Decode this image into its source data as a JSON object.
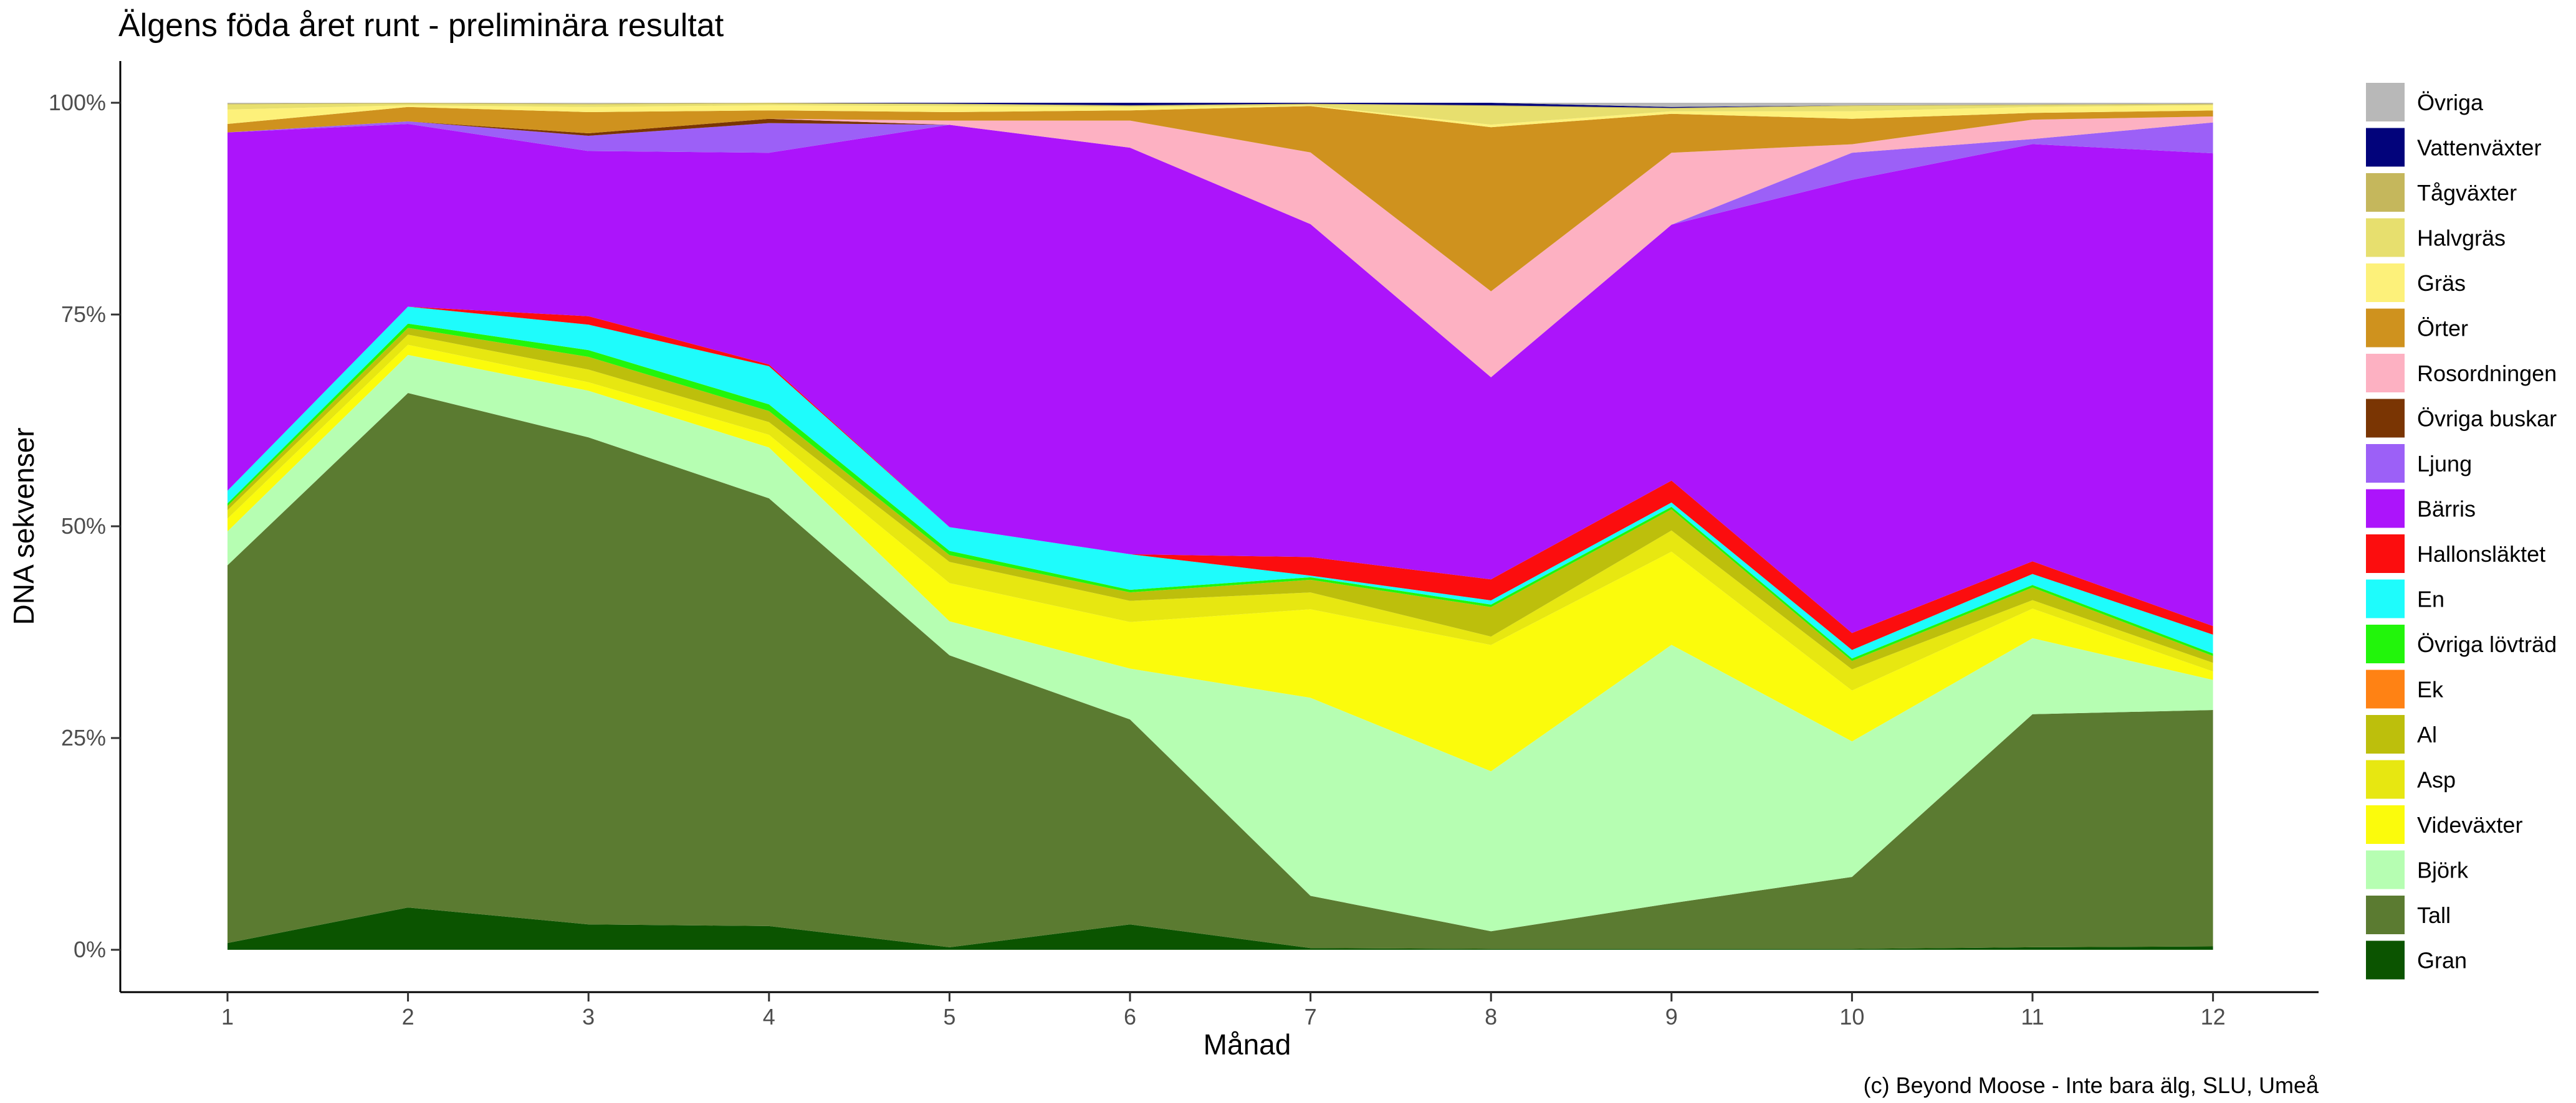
{
  "chart_data": {
    "type": "area",
    "stacked": true,
    "normalized": true,
    "title": "Älgens föda året runt - preliminära resultat",
    "xlabel": "Månad",
    "ylabel": "DNA sekvenser",
    "caption": "(c) Beyond Moose - Inte bara älg, SLU, Umeå",
    "x": [
      1,
      2,
      3,
      4,
      5,
      6,
      7,
      8,
      9,
      10,
      11,
      12
    ],
    "x_tick_labels": [
      "1",
      "2",
      "3",
      "4",
      "5",
      "6",
      "7",
      "8",
      "9",
      "10",
      "11",
      "12"
    ],
    "y_tick_labels": [
      "0%",
      "25%",
      "50%",
      "75%",
      "100%"
    ],
    "y_ticks": [
      0,
      25,
      50,
      75,
      100
    ],
    "ylim": [
      0,
      100
    ],
    "grid": false,
    "legend_position": "right",
    "series": [
      {
        "name": "Gran",
        "color": "#0b5400",
        "values": [
          0.8,
          5.0,
          3.0,
          2.8,
          0.3,
          3.0,
          0.2,
          0.1,
          0.1,
          0.1,
          0.3,
          0.4
        ]
      },
      {
        "name": "Tall",
        "color": "#5b7b31",
        "values": [
          44.6,
          60.8,
          57.5,
          50.5,
          34.4,
          24.2,
          6.2,
          2.1,
          5.4,
          8.5,
          27.6,
          27.6
        ]
      },
      {
        "name": "Björk",
        "color": "#b6feb2",
        "values": [
          4.0,
          4.5,
          5.5,
          6.0,
          4.0,
          6.0,
          23.5,
          19.0,
          30.5,
          16.0,
          9.0,
          3.5
        ]
      },
      {
        "name": "Videväxter",
        "color": "#fbfb0c",
        "values": [
          1.5,
          1.2,
          1.0,
          1.5,
          4.5,
          5.5,
          10.5,
          15.0,
          11.0,
          6.0,
          3.5,
          1.0
        ]
      },
      {
        "name": "Asp",
        "color": "#e7e711",
        "values": [
          1.0,
          1.2,
          1.5,
          1.5,
          2.5,
          2.5,
          2.0,
          1.0,
          2.5,
          2.5,
          1.0,
          1.0
        ]
      },
      {
        "name": "Al",
        "color": "#bdbf0c",
        "values": [
          0.5,
          0.8,
          1.5,
          1.3,
          0.8,
          1.0,
          1.5,
          3.5,
          2.5,
          1.0,
          1.5,
          0.8
        ]
      },
      {
        "name": "Ek",
        "color": "#ff8214",
        "values": [
          0.0,
          0.0,
          0.0,
          0.0,
          0.0,
          0.0,
          0.0,
          0.0,
          0.0,
          0.0,
          0.0,
          0.0
        ]
      },
      {
        "name": "Övriga lövträd",
        "color": "#22f50b",
        "values": [
          0.3,
          0.5,
          0.8,
          0.8,
          0.5,
          0.3,
          0.3,
          0.3,
          0.3,
          0.3,
          0.3,
          0.3
        ]
      },
      {
        "name": "En",
        "color": "#1efcfc",
        "values": [
          1.5,
          2.0,
          3.0,
          4.5,
          2.8,
          4.2,
          0.2,
          0.5,
          0.5,
          1.0,
          1.3,
          2.2
        ]
      },
      {
        "name": "Hallonsläktet",
        "color": "#fc0d0e",
        "values": [
          0.0,
          0.0,
          1.0,
          0.2,
          0.0,
          0.0,
          2.2,
          2.5,
          2.6,
          2.0,
          1.5,
          1.0
        ]
      },
      {
        "name": "Bärris",
        "color": "#ac14fb",
        "values": [
          42.3,
          21.6,
          19.5,
          25.0,
          47.4,
          48.0,
          39.5,
          24.0,
          30.2,
          53.5,
          49.4,
          55.2
        ]
      },
      {
        "name": "Ljung",
        "color": "#9c60f7",
        "values": [
          0.0,
          0.3,
          1.8,
          3.5,
          0.0,
          0.0,
          0.0,
          0.0,
          0.0,
          3.2,
          0.6,
          3.6
        ]
      },
      {
        "name": "Övriga buskar",
        "color": "#7a3503",
        "values": [
          0.0,
          0.0,
          0.3,
          0.5,
          0.0,
          0.0,
          0.0,
          0.0,
          0.0,
          0.0,
          0.0,
          0.0
        ]
      },
      {
        "name": "Rosordningen",
        "color": "#fdb1c2",
        "values": [
          0.0,
          0.0,
          0.0,
          0.0,
          0.5,
          3.2,
          8.5,
          10.2,
          8.5,
          1.0,
          2.3,
          0.7
        ]
      },
      {
        "name": "Örter",
        "color": "#cf921e",
        "values": [
          1.0,
          1.7,
          2.5,
          1.0,
          1.0,
          1.2,
          5.5,
          19.5,
          4.6,
          3.0,
          0.8,
          0.7
        ]
      },
      {
        "name": "Gräs",
        "color": "#fdf17a",
        "values": [
          1.7,
          0.2,
          0.6,
          0.6,
          0.7,
          0.4,
          0.1,
          0.3,
          0.3,
          0.9,
          0.7,
          0.6
        ]
      },
      {
        "name": "Halvgräs",
        "color": "#e7df6e",
        "values": [
          0.6,
          0.2,
          0.3,
          0.2,
          0.2,
          0.1,
          0.1,
          2.2,
          0.3,
          0.6,
          0.2,
          0.1
        ]
      },
      {
        "name": "Tågväxter",
        "color": "#c5b75c",
        "values": [
          0.1,
          0.1,
          0.1,
          0.1,
          0.1,
          0.1,
          0.1,
          0.1,
          0.1,
          0.1,
          0.1,
          0.1
        ]
      },
      {
        "name": "Vattenväxter",
        "color": "#02037b",
        "values": [
          0.0,
          0.0,
          0.0,
          0.0,
          0.1,
          0.3,
          0.1,
          0.3,
          0.1,
          0.0,
          0.0,
          0.0
        ]
      },
      {
        "name": "Övriga",
        "color": "#b8b8b8",
        "values": [
          0.1,
          0.0,
          0.1,
          0.0,
          0.0,
          0.0,
          0.0,
          0.0,
          0.5,
          0.3,
          0.2,
          0.1
        ]
      }
    ]
  }
}
